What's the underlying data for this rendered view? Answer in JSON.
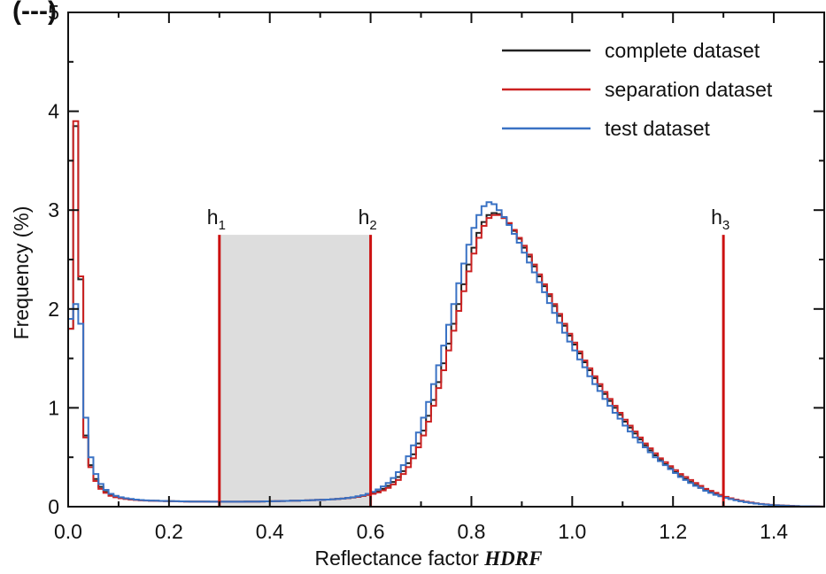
{
  "title_fragment": "(---)",
  "chart_data": {
    "type": "line",
    "step": true,
    "xlabel_prefix": "Reflectance factor ",
    "xlabel_emph": "HDRF",
    "ylabel": "Frequency (%)",
    "xlim": [
      0,
      1.5
    ],
    "ylim": [
      0,
      5
    ],
    "x_ticks": [
      "0.0",
      "0.2",
      "0.4",
      "0.6",
      "0.8",
      "1.0",
      "1.2",
      "1.4"
    ],
    "x_tick_values": [
      0.0,
      0.2,
      0.4,
      0.6,
      0.8,
      1.0,
      1.2,
      1.4
    ],
    "y_ticks": [
      "0",
      "1",
      "2",
      "3",
      "4",
      "5"
    ],
    "y_tick_values": [
      0,
      1,
      2,
      3,
      4,
      5
    ],
    "grid": false,
    "legend_position": "top-right",
    "bin_width": 0.01,
    "series": [
      {
        "name": "complete dataset",
        "color": "#222222",
        "values": [
          1.8,
          3.85,
          2.3,
          0.72,
          0.42,
          0.28,
          0.2,
          0.15,
          0.12,
          0.1,
          0.09,
          0.08,
          0.075,
          0.07,
          0.066,
          0.063,
          0.061,
          0.06,
          0.058,
          0.057,
          0.056,
          0.055,
          0.054,
          0.053,
          0.052,
          0.052,
          0.051,
          0.051,
          0.05,
          0.05,
          0.05,
          0.05,
          0.05,
          0.05,
          0.05,
          0.051,
          0.051,
          0.052,
          0.053,
          0.054,
          0.055,
          0.056,
          0.057,
          0.058,
          0.06,
          0.061,
          0.063,
          0.064,
          0.066,
          0.068,
          0.07,
          0.072,
          0.075,
          0.078,
          0.082,
          0.087,
          0.093,
          0.1,
          0.11,
          0.12,
          0.135,
          0.155,
          0.18,
          0.21,
          0.25,
          0.3,
          0.36,
          0.44,
          0.53,
          0.64,
          0.77,
          0.92,
          1.08,
          1.26,
          1.45,
          1.65,
          1.85,
          2.05,
          2.25,
          2.45,
          2.62,
          2.77,
          2.88,
          2.95,
          2.97,
          2.96,
          2.92,
          2.86,
          2.79,
          2.71,
          2.62,
          2.53,
          2.43,
          2.33,
          2.23,
          2.13,
          2.03,
          1.93,
          1.83,
          1.73,
          1.64,
          1.55,
          1.46,
          1.38,
          1.3,
          1.22,
          1.14,
          1.07,
          1.0,
          0.93,
          0.86,
          0.8,
          0.74,
          0.68,
          0.62,
          0.57,
          0.52,
          0.47,
          0.43,
          0.39,
          0.35,
          0.31,
          0.28,
          0.25,
          0.22,
          0.19,
          0.17,
          0.15,
          0.13,
          0.11,
          0.095,
          0.08,
          0.068,
          0.057,
          0.048,
          0.04,
          0.033,
          0.027,
          0.022,
          0.018,
          0.015,
          0.012,
          0.01,
          0.008,
          0.006,
          0.005,
          0.004,
          0.003,
          0.002,
          0.0015
        ]
      },
      {
        "name": "separation dataset",
        "color": "#cc2222",
        "values": [
          1.8,
          3.9,
          2.33,
          0.7,
          0.4,
          0.26,
          0.18,
          0.14,
          0.11,
          0.095,
          0.085,
          0.078,
          0.072,
          0.068,
          0.064,
          0.062,
          0.06,
          0.058,
          0.057,
          0.056,
          0.055,
          0.054,
          0.053,
          0.052,
          0.052,
          0.051,
          0.051,
          0.05,
          0.05,
          0.05,
          0.05,
          0.05,
          0.05,
          0.05,
          0.05,
          0.051,
          0.051,
          0.052,
          0.053,
          0.054,
          0.055,
          0.056,
          0.057,
          0.058,
          0.06,
          0.061,
          0.063,
          0.064,
          0.066,
          0.068,
          0.07,
          0.072,
          0.075,
          0.078,
          0.082,
          0.087,
          0.093,
          0.1,
          0.11,
          0.12,
          0.13,
          0.145,
          0.165,
          0.19,
          0.225,
          0.27,
          0.33,
          0.4,
          0.49,
          0.6,
          0.72,
          0.86,
          1.02,
          1.2,
          1.38,
          1.58,
          1.78,
          1.98,
          2.18,
          2.38,
          2.56,
          2.72,
          2.84,
          2.92,
          2.95,
          2.95,
          2.92,
          2.87,
          2.8,
          2.72,
          2.64,
          2.55,
          2.45,
          2.35,
          2.25,
          2.15,
          2.05,
          1.95,
          1.85,
          1.75,
          1.66,
          1.57,
          1.48,
          1.4,
          1.32,
          1.24,
          1.16,
          1.09,
          1.02,
          0.95,
          0.88,
          0.82,
          0.76,
          0.7,
          0.64,
          0.59,
          0.54,
          0.49,
          0.45,
          0.41,
          0.37,
          0.33,
          0.3,
          0.27,
          0.24,
          0.21,
          0.18,
          0.16,
          0.14,
          0.12,
          0.1,
          0.085,
          0.072,
          0.06,
          0.05,
          0.042,
          0.034,
          0.028,
          0.023,
          0.019,
          0.015,
          0.012,
          0.01,
          0.008,
          0.006,
          0.005,
          0.004,
          0.003,
          0.002,
          0.0015
        ]
      },
      {
        "name": "test dataset",
        "color": "#3a72c4",
        "values": [
          1.9,
          2.05,
          1.85,
          0.9,
          0.5,
          0.33,
          0.23,
          0.17,
          0.13,
          0.11,
          0.095,
          0.085,
          0.078,
          0.072,
          0.067,
          0.064,
          0.062,
          0.06,
          0.058,
          0.057,
          0.056,
          0.055,
          0.054,
          0.053,
          0.052,
          0.052,
          0.051,
          0.051,
          0.05,
          0.05,
          0.05,
          0.05,
          0.05,
          0.05,
          0.05,
          0.051,
          0.051,
          0.052,
          0.053,
          0.054,
          0.055,
          0.056,
          0.057,
          0.058,
          0.06,
          0.061,
          0.063,
          0.064,
          0.066,
          0.068,
          0.07,
          0.072,
          0.075,
          0.078,
          0.082,
          0.088,
          0.095,
          0.105,
          0.115,
          0.13,
          0.15,
          0.175,
          0.205,
          0.24,
          0.29,
          0.35,
          0.42,
          0.51,
          0.62,
          0.75,
          0.9,
          1.06,
          1.24,
          1.43,
          1.63,
          1.84,
          2.05,
          2.26,
          2.46,
          2.65,
          2.82,
          2.95,
          3.04,
          3.08,
          3.06,
          3.0,
          2.93,
          2.85,
          2.76,
          2.67,
          2.57,
          2.47,
          2.37,
          2.27,
          2.17,
          2.06,
          1.96,
          1.86,
          1.76,
          1.67,
          1.58,
          1.49,
          1.41,
          1.32,
          1.24,
          1.17,
          1.09,
          1.02,
          0.95,
          0.89,
          0.82,
          0.76,
          0.7,
          0.65,
          0.6,
          0.55,
          0.5,
          0.46,
          0.42,
          0.38,
          0.34,
          0.3,
          0.27,
          0.24,
          0.21,
          0.19,
          0.16,
          0.14,
          0.12,
          0.105,
          0.09,
          0.077,
          0.065,
          0.055,
          0.046,
          0.038,
          0.031,
          0.026,
          0.021,
          0.017,
          0.014,
          0.011,
          0.009,
          0.007,
          0.006,
          0.005,
          0.004,
          0.003,
          0.002,
          0.0015
        ]
      }
    ],
    "thresholds": [
      {
        "label": "h",
        "sub": "1",
        "x": 0.3,
        "height": 2.75
      },
      {
        "label": "h",
        "sub": "2",
        "x": 0.6,
        "height": 2.75
      },
      {
        "label": "h",
        "sub": "3",
        "x": 1.3,
        "height": 2.75
      }
    ],
    "threshold_color": "#cc1111",
    "shaded_region": {
      "x": [
        0.3,
        0.6
      ],
      "y": [
        0,
        2.75
      ],
      "color": "#dddddd"
    }
  }
}
